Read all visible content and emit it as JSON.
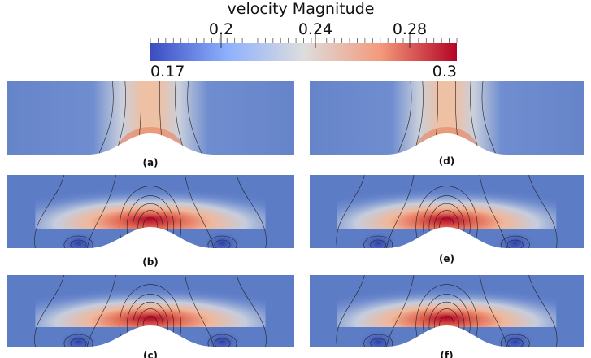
{
  "colorbar": {
    "title": "velocity Magnitude",
    "range": [
      0.17,
      0.3
    ],
    "ticks": [
      0.2,
      0.24,
      0.28
    ]
  },
  "panels": [
    {
      "label": "(a)"
    },
    {
      "label": "(b)"
    },
    {
      "label": "(c)"
    },
    {
      "label": "(d)"
    },
    {
      "label": "(e)"
    },
    {
      "label": "(f)"
    }
  ]
}
